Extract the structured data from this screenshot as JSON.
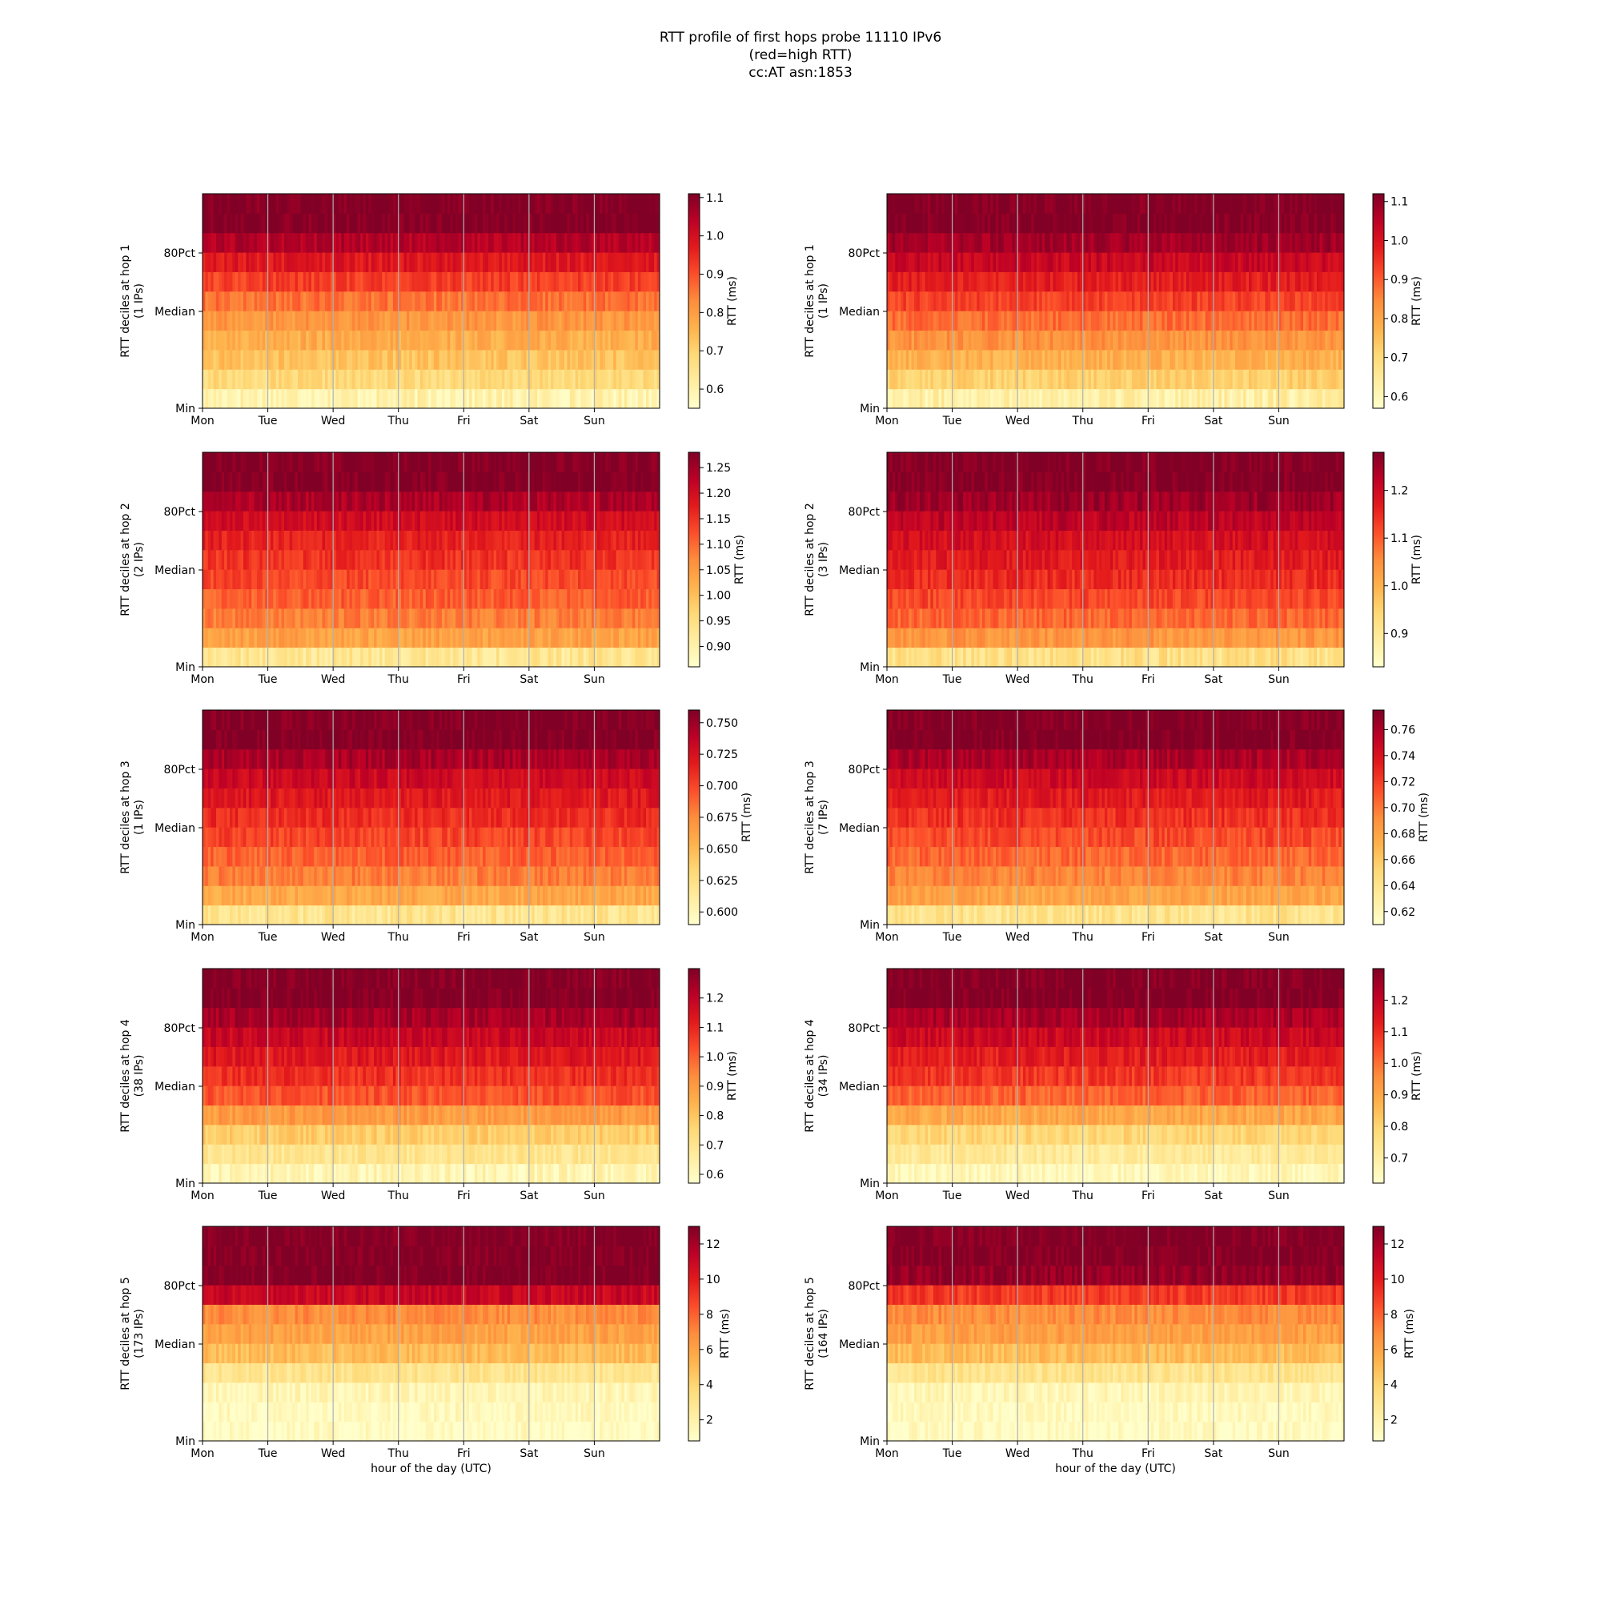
{
  "figure": {
    "title_lines": [
      "RTT profile of first hops probe 11110 IPv6",
      "(red=high RTT)",
      "cc:AT asn:1853"
    ]
  },
  "colors": {
    "colormap": [
      "#ffffcc",
      "#ffeda0",
      "#fed976",
      "#feb24c",
      "#fd8d3c",
      "#fc4e2a",
      "#e31a1c",
      "#bd0026",
      "#800026"
    ],
    "gridline": "#b0b0b0"
  },
  "chart_data": [
    {
      "type": "heatmap",
      "panel": "hop1-a",
      "ylabel": "RTT deciles at hop 1",
      "ylabel2": "(1 IPs)",
      "yticks": [
        "80Pct",
        "Median",
        "Min"
      ],
      "xticks": [
        "Mon",
        "Tue",
        "Wed",
        "Thu",
        "Fri",
        "Sat",
        "Sun"
      ],
      "xlabel": "",
      "cbar_label": "RTT (ms)",
      "cbar_range": [
        0.55,
        1.11
      ],
      "cbar_ticks": [
        "1.1",
        "1.0",
        "0.9",
        "0.8",
        "0.7",
        "0.6"
      ],
      "cbar_tick_values": [
        1.1,
        1.0,
        0.9,
        0.8,
        0.7,
        0.6
      ],
      "decile_values_ms": [
        0.6,
        0.68,
        0.73,
        0.77,
        0.81,
        0.86,
        0.92,
        0.98,
        1.05,
        1.11,
        1.11
      ]
    },
    {
      "type": "heatmap",
      "panel": "hop1-b",
      "ylabel": "RTT deciles at hop 1",
      "ylabel2": "(1 IPs)",
      "yticks": [
        "80Pct",
        "Median",
        "Min"
      ],
      "xticks": [
        "Mon",
        "Tue",
        "Wed",
        "Thu",
        "Fri",
        "Sat",
        "Sun"
      ],
      "xlabel": "",
      "cbar_label": "RTT (ms)",
      "cbar_range": [
        0.57,
        1.12
      ],
      "cbar_ticks": [
        "1.1",
        "1.0",
        "0.9",
        "0.8",
        "0.7",
        "0.6"
      ],
      "cbar_tick_values": [
        1.1,
        1.0,
        0.9,
        0.8,
        0.7,
        0.6
      ],
      "decile_values_ms": [
        0.63,
        0.72,
        0.78,
        0.83,
        0.88,
        0.93,
        0.98,
        1.03,
        1.08,
        1.12,
        1.12
      ]
    },
    {
      "type": "heatmap",
      "panel": "hop2-a",
      "ylabel": "RTT deciles at hop 2",
      "ylabel2": "(2 IPs)",
      "yticks": [
        "80Pct",
        "Median",
        "Min"
      ],
      "xticks": [
        "Mon",
        "Tue",
        "Wed",
        "Thu",
        "Fri",
        "Sat",
        "Sun"
      ],
      "xlabel": "",
      "cbar_label": "RTT (ms)",
      "cbar_range": [
        0.86,
        1.28
      ],
      "cbar_ticks": [
        "1.25",
        "1.20",
        "1.15",
        "1.10",
        "1.05",
        "1.00",
        "0.95",
        "0.90"
      ],
      "cbar_tick_values": [
        1.25,
        1.2,
        1.15,
        1.1,
        1.05,
        1.0,
        0.95,
        0.9
      ],
      "decile_values_ms": [
        0.93,
        1.04,
        1.08,
        1.11,
        1.13,
        1.15,
        1.17,
        1.2,
        1.24,
        1.28,
        1.28
      ]
    },
    {
      "type": "heatmap",
      "panel": "hop2-b",
      "ylabel": "RTT deciles at hop 2",
      "ylabel2": "(3 IPs)",
      "yticks": [
        "80Pct",
        "Median",
        "Min"
      ],
      "xticks": [
        "Mon",
        "Tue",
        "Wed",
        "Thu",
        "Fri",
        "Sat",
        "Sun"
      ],
      "xlabel": "",
      "cbar_label": "RTT (ms)",
      "cbar_range": [
        0.83,
        1.28
      ],
      "cbar_ticks": [
        "1.2",
        "1.1",
        "1.0",
        "0.9"
      ],
      "cbar_tick_values": [
        1.2,
        1.1,
        1.0,
        0.9
      ],
      "decile_values_ms": [
        0.92,
        1.04,
        1.09,
        1.12,
        1.15,
        1.17,
        1.19,
        1.22,
        1.25,
        1.28,
        1.28
      ]
    },
    {
      "type": "heatmap",
      "panel": "hop3-a",
      "ylabel": "RTT deciles at hop 3",
      "ylabel2": "(1 IPs)",
      "yticks": [
        "80Pct",
        "Median",
        "Min"
      ],
      "xticks": [
        "Mon",
        "Tue",
        "Wed",
        "Thu",
        "Fri",
        "Sat",
        "Sun"
      ],
      "xlabel": "",
      "cbar_label": "RTT (ms)",
      "cbar_range": [
        0.59,
        0.76
      ],
      "cbar_ticks": [
        "0.750",
        "0.725",
        "0.700",
        "0.675",
        "0.650",
        "0.625",
        "0.600"
      ],
      "cbar_tick_values": [
        0.75,
        0.725,
        0.7,
        0.675,
        0.65,
        0.625,
        0.6
      ],
      "decile_values_ms": [
        0.62,
        0.66,
        0.68,
        0.69,
        0.7,
        0.71,
        0.72,
        0.73,
        0.745,
        0.76,
        0.76
      ]
    },
    {
      "type": "heatmap",
      "panel": "hop3-b",
      "ylabel": "RTT deciles at hop 3",
      "ylabel2": "(7 IPs)",
      "yticks": [
        "80Pct",
        "Median",
        "Min"
      ],
      "xticks": [
        "Mon",
        "Tue",
        "Wed",
        "Thu",
        "Fri",
        "Sat",
        "Sun"
      ],
      "xlabel": "",
      "cbar_label": "RTT (ms)",
      "cbar_range": [
        0.61,
        0.775
      ],
      "cbar_ticks": [
        "0.76",
        "0.74",
        "0.72",
        "0.70",
        "0.68",
        "0.66",
        "0.64",
        "0.62"
      ],
      "cbar_tick_values": [
        0.76,
        0.74,
        0.72,
        0.7,
        0.68,
        0.66,
        0.64,
        0.62
      ],
      "decile_values_ms": [
        0.64,
        0.68,
        0.695,
        0.705,
        0.715,
        0.725,
        0.735,
        0.745,
        0.76,
        0.775,
        0.775
      ]
    },
    {
      "type": "heatmap",
      "panel": "hop4-a",
      "ylabel": "RTT deciles at hop 4",
      "ylabel2": "(38 IPs)",
      "yticks": [
        "80Pct",
        "Median",
        "Min"
      ],
      "xticks": [
        "Mon",
        "Tue",
        "Wed",
        "Thu",
        "Fri",
        "Sat",
        "Sun"
      ],
      "xlabel": "",
      "cbar_label": "RTT (ms)",
      "cbar_range": [
        0.57,
        1.3
      ],
      "cbar_ticks": [
        "1.2",
        "1.1",
        "1.0",
        "0.9",
        "0.8",
        "0.7",
        "0.6"
      ],
      "cbar_tick_values": [
        1.2,
        1.1,
        1.0,
        0.9,
        0.8,
        0.7,
        0.6
      ],
      "decile_values_ms": [
        0.62,
        0.7,
        0.78,
        0.9,
        1.02,
        1.08,
        1.13,
        1.18,
        1.24,
        1.3,
        1.3
      ]
    },
    {
      "type": "heatmap",
      "panel": "hop4-b",
      "ylabel": "RTT deciles at hop 4",
      "ylabel2": "(34 IPs)",
      "yticks": [
        "80Pct",
        "Median",
        "Min"
      ],
      "xticks": [
        "Mon",
        "Tue",
        "Wed",
        "Thu",
        "Fri",
        "Sat",
        "Sun"
      ],
      "xlabel": "",
      "cbar_label": "RTT (ms)",
      "cbar_range": [
        0.62,
        1.3
      ],
      "cbar_ticks": [
        "1.2",
        "1.1",
        "1.0",
        "0.9",
        "0.8",
        "0.7"
      ],
      "cbar_tick_values": [
        1.2,
        1.1,
        1.0,
        0.9,
        0.8,
        0.7
      ],
      "decile_values_ms": [
        0.65,
        0.72,
        0.79,
        0.9,
        1.02,
        1.08,
        1.13,
        1.18,
        1.24,
        1.3,
        1.3
      ]
    },
    {
      "type": "heatmap",
      "panel": "hop5-a",
      "ylabel": "RTT deciles at hop 5",
      "ylabel2": "(173 IPs)",
      "yticks": [
        "80Pct",
        "Median",
        "Min"
      ],
      "xticks": [
        "Mon",
        "Tue",
        "Wed",
        "Thu",
        "Fri",
        "Sat",
        "Sun"
      ],
      "xlabel": "hour of the day (UTC)",
      "cbar_label": "RTT (ms)",
      "cbar_range": [
        0.8,
        13.0
      ],
      "cbar_ticks": [
        "12",
        "10",
        "8",
        "6",
        "4",
        "2"
      ],
      "cbar_tick_values": [
        12,
        10,
        8,
        6,
        4,
        2
      ],
      "decile_values_ms": [
        1.0,
        1.3,
        1.6,
        3.0,
        5.0,
        6.0,
        6.8,
        11.0,
        13.0,
        13.0,
        13.0
      ]
    },
    {
      "type": "heatmap",
      "panel": "hop5-b",
      "ylabel": "RTT deciles at hop 5",
      "ylabel2": "(164 IPs)",
      "yticks": [
        "80Pct",
        "Median",
        "Min"
      ],
      "xticks": [
        "Mon",
        "Tue",
        "Wed",
        "Thu",
        "Fri",
        "Sat",
        "Sun"
      ],
      "xlabel": "hour of the day (UTC)",
      "cbar_label": "RTT (ms)",
      "cbar_range": [
        0.8,
        13.0
      ],
      "cbar_ticks": [
        "12",
        "10",
        "8",
        "6",
        "4",
        "2"
      ],
      "cbar_tick_values": [
        12,
        10,
        8,
        6,
        4,
        2
      ],
      "decile_values_ms": [
        1.0,
        1.3,
        1.6,
        3.0,
        5.0,
        6.2,
        6.8,
        9.0,
        12.5,
        13.0,
        13.0
      ]
    }
  ]
}
